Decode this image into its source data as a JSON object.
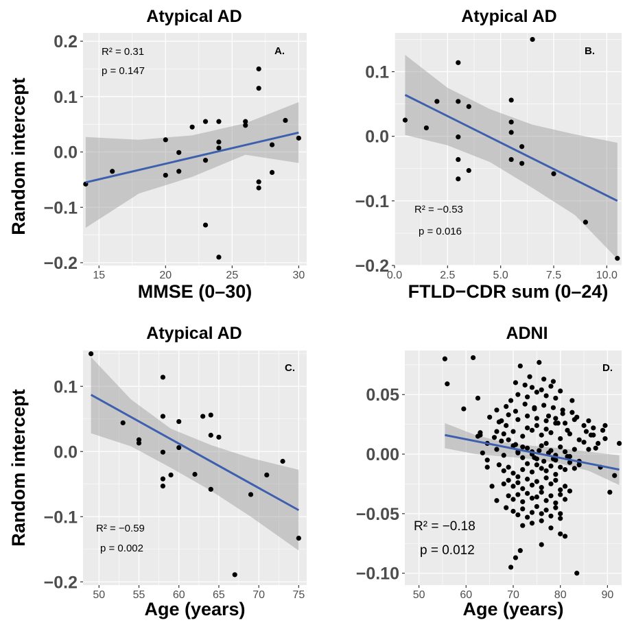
{
  "colors": {
    "panel_bg": "#ebebeb",
    "grid_major": "#ffffff",
    "point": "#000000",
    "fit_line": "#3e5fae",
    "ci_band": "#999999"
  },
  "ylabel_left": "Random intercept",
  "chart_data": [
    {
      "id": "A",
      "type": "scatter",
      "title": "Atypical AD",
      "xlabel": "MMSE (0–30)",
      "ylabel": "Random intercept",
      "tag": "A.",
      "stats": {
        "r2": "R² = 0.31",
        "p": "p = 0.147"
      },
      "xlim": [
        13.8,
        30.6
      ],
      "ylim": [
        -0.205,
        0.215
      ],
      "xticks": [
        15,
        20,
        25,
        30
      ],
      "xtick_labels": [
        "15",
        "20",
        "25",
        "30"
      ],
      "yticks": [
        -0.2,
        -0.1,
        0.0,
        0.1,
        0.2
      ],
      "ytick_labels": [
        "−0.2",
        "−0.1",
        "0.0",
        "0.1",
        "0.2"
      ],
      "x": [
        14,
        16,
        20,
        20,
        21,
        21,
        22,
        23,
        23,
        23,
        24,
        24,
        24,
        24,
        26,
        26,
        27,
        27,
        27,
        27,
        28,
        28,
        29,
        30
      ],
      "y": [
        -0.058,
        -0.035,
        0.022,
        -0.042,
        -0.001,
        -0.035,
        0.045,
        0.055,
        -0.015,
        -0.132,
        0.055,
        0.018,
        0.007,
        -0.19,
        0.055,
        0.048,
        0.15,
        0.115,
        -0.054,
        -0.065,
        0.013,
        -0.037,
        0.057,
        0.025
      ],
      "fit": {
        "x0": 14,
        "y0": -0.055,
        "x1": 30,
        "y1": 0.035
      },
      "band": {
        "x": [
          14,
          18,
          22,
          26,
          30
        ],
        "upper": [
          0.027,
          0.022,
          0.03,
          0.052,
          0.09
        ],
        "lower": [
          -0.137,
          -0.075,
          -0.045,
          -0.005,
          -0.02
        ]
      }
    },
    {
      "id": "B",
      "type": "scatter",
      "title": "Atypical AD",
      "xlabel": "FTLD−CDR sum (0–24)",
      "ylabel": "",
      "tag": "B.",
      "stats": {
        "r2": "R² = −0.53",
        "p": "p = 0.016"
      },
      "xlim": [
        0.0,
        10.7
      ],
      "ylim": [
        -0.2,
        0.16
      ],
      "xticks": [
        0.0,
        2.5,
        5.0,
        7.5,
        10.0
      ],
      "xtick_labels": [
        "0.0",
        "2.5",
        "5.0",
        "7.5",
        "10.0"
      ],
      "yticks": [
        -0.2,
        -0.1,
        0.0,
        0.1
      ],
      "ytick_labels": [
        "−0.2",
        "−0.1",
        "0.0",
        "0.1"
      ],
      "x": [
        0.5,
        1.5,
        2.0,
        3.0,
        3.0,
        3.0,
        3.0,
        3.0,
        3.5,
        3.5,
        5.5,
        5.5,
        5.5,
        5.5,
        6.0,
        6.0,
        6.5,
        7.5,
        9.0,
        10.5
      ],
      "y": [
        0.025,
        0.013,
        0.054,
        0.114,
        0.054,
        -0.001,
        -0.036,
        -0.066,
        0.046,
        -0.053,
        0.056,
        0.022,
        0.006,
        -0.036,
        -0.016,
        -0.042,
        0.15,
        -0.058,
        -0.133,
        -0.189
      ],
      "fit": {
        "x0": 0.5,
        "y0": 0.064,
        "x1": 10.5,
        "y1": -0.1
      },
      "band": {
        "x": [
          0.5,
          2.5,
          4.5,
          6.5,
          8.5,
          10.5
        ],
        "upper": [
          0.126,
          0.075,
          0.042,
          0.018,
          0.003,
          -0.01
        ],
        "lower": [
          0.002,
          -0.014,
          -0.04,
          -0.08,
          -0.122,
          -0.19
        ]
      }
    },
    {
      "id": "C",
      "type": "scatter",
      "title": "Atypical AD",
      "xlabel": "Age (years)",
      "ylabel": "Random intercept",
      "tag": "C.",
      "stats": {
        "r2": "R² = −0.59",
        "p": "p = 0.002"
      },
      "xlim": [
        48.0,
        76.0
      ],
      "ylim": [
        -0.205,
        0.155
      ],
      "xticks": [
        50,
        55,
        60,
        65,
        70,
        75
      ],
      "xtick_labels": [
        "50",
        "55",
        "60",
        "65",
        "70",
        "75"
      ],
      "yticks": [
        -0.2,
        -0.1,
        0.0,
        0.1
      ],
      "ytick_labels": [
        "−0.2",
        "−0.1",
        "0.0",
        "0.1"
      ],
      "x": [
        49,
        53,
        55,
        55,
        58,
        58,
        58,
        58,
        58,
        59,
        60,
        60,
        62,
        63,
        64,
        64,
        64,
        65,
        67,
        69,
        71,
        73,
        75
      ],
      "y": [
        0.15,
        0.044,
        0.018,
        0.013,
        0.114,
        0.054,
        -0.001,
        -0.042,
        -0.053,
        -0.036,
        0.046,
        0.006,
        -0.035,
        0.054,
        0.056,
        0.025,
        -0.058,
        0.022,
        -0.189,
        -0.066,
        -0.036,
        -0.015,
        -0.133
      ],
      "fit": {
        "x0": 49,
        "y0": 0.087,
        "x1": 75,
        "y1": -0.09
      },
      "band": {
        "x": [
          49,
          54,
          59,
          64,
          69,
          75
        ],
        "upper": [
          0.145,
          0.08,
          0.035,
          0.01,
          -0.01,
          -0.028
        ],
        "lower": [
          0.028,
          0.008,
          -0.025,
          -0.06,
          -0.1,
          -0.152
        ]
      }
    },
    {
      "id": "D",
      "type": "scatter",
      "title": "ADNI",
      "xlabel": "Age (years)",
      "ylabel": "",
      "tag": "D.",
      "stats": {
        "r2": "R² = −0.18",
        "p": "p = 0.012"
      },
      "xlim": [
        47.0,
        93.0
      ],
      "ylim": [
        -0.11,
        0.087
      ],
      "xticks": [
        50,
        60,
        70,
        80,
        90
      ],
      "xtick_labels": [
        "50",
        "60",
        "70",
        "80",
        "90"
      ],
      "yticks": [
        -0.1,
        -0.05,
        0.0,
        0.05
      ],
      "ytick_labels": [
        "−0.10",
        "−0.05",
        "0.00",
        "0.05"
      ],
      "x": [
        55.5,
        56,
        59.5,
        61.5,
        62.5,
        62.5,
        63,
        63.5,
        63,
        64.5,
        66.5,
        67.5,
        68.5,
        69.5,
        70.5,
        71.5,
        73.5,
        74.5,
        75.5,
        76.5,
        77.5,
        78.5,
        79.5,
        80.5,
        81.5,
        82.5,
        83.5,
        85.5,
        86.5,
        87.5,
        88.5,
        89.5,
        89.5,
        90.5,
        91.5,
        92.5,
        83.5,
        81,
        80,
        76,
        71.5,
        69.5,
        70.5,
        68.5,
        66.5,
        65.5,
        64.5,
        64.5,
        66.5,
        67.5,
        69,
        70,
        71,
        72,
        73,
        74,
        75,
        76,
        77,
        78,
        79,
        80,
        81,
        82,
        83,
        84,
        85,
        86,
        87,
        88,
        67,
        68,
        69,
        70,
        71,
        72,
        73,
        74,
        75,
        76,
        77,
        78,
        79,
        80,
        81,
        82,
        83,
        84,
        68,
        69,
        70,
        71,
        72,
        73,
        74,
        75,
        76,
        77,
        78,
        79,
        80,
        81,
        82,
        69,
        70,
        71,
        72,
        73,
        74,
        75,
        76,
        77,
        78,
        79,
        80,
        81,
        70,
        71,
        72,
        73,
        74,
        75,
        76,
        77,
        78,
        79,
        80,
        72,
        74,
        76,
        78,
        80,
        73,
        75,
        77,
        79,
        66,
        68,
        70,
        72,
        74,
        76,
        78,
        80,
        82,
        84,
        86,
        65,
        67,
        69,
        71,
        73,
        75,
        77,
        79,
        81,
        83,
        85,
        87,
        89,
        66.5,
        68.5,
        70.5,
        72.5,
        74.5,
        76.5,
        78.5,
        80.5,
        82.5,
        71,
        73,
        75,
        77,
        79,
        72.5,
        74,
        76,
        78,
        80,
        74.5,
        76.5,
        78.5,
        70.5,
        72,
        75.5,
        77.5,
        81.5,
        68,
        71,
        74,
        79
      ],
      "y": [
        0.08,
        0.059,
        0.038,
        0.081,
        0.047,
        0.015,
        0.016,
        0.001,
        0.018,
        0.009,
        0.019,
        0.028,
        0.024,
        0.045,
        0.06,
        0.074,
        0.065,
        0.039,
        0.077,
        0.063,
        0.032,
        0.061,
        0.026,
        0.034,
        0.02,
        0.045,
        0.031,
        0.019,
        0.016,
        0.005,
        -0.011,
        0.024,
        0.013,
        -0.032,
        -0.018,
        0.009,
        -0.1,
        -0.069,
        -0.067,
        -0.076,
        -0.081,
        -0.095,
        -0.087,
        -0.045,
        -0.039,
        -0.027,
        -0.011,
        -0.005,
        0.004,
        0.011,
        0.012,
        0.007,
        0.001,
        -0.003,
        0.005,
        0.002,
        -0.004,
        0.007,
        0.009,
        0.003,
        -0.001,
        0.006,
        0.002,
        -0.002,
        0.004,
        -0.006,
        0.01,
        0.004,
        0.016,
        0.009,
        -0.009,
        -0.014,
        -0.011,
        -0.016,
        -0.019,
        -0.013,
        -0.008,
        -0.015,
        -0.009,
        -0.012,
        -0.014,
        -0.01,
        -0.017,
        -0.011,
        -0.013,
        -0.007,
        -0.012,
        -0.009,
        -0.025,
        -0.022,
        -0.027,
        -0.024,
        -0.029,
        -0.021,
        -0.026,
        -0.023,
        -0.028,
        -0.02,
        -0.025,
        -0.022,
        -0.03,
        -0.027,
        -0.031,
        -0.035,
        -0.038,
        -0.034,
        -0.04,
        -0.033,
        -0.037,
        -0.036,
        -0.032,
        -0.039,
        -0.035,
        -0.041,
        -0.034,
        -0.038,
        -0.048,
        -0.051,
        -0.046,
        -0.053,
        -0.049,
        -0.044,
        -0.05,
        -0.047,
        -0.052,
        -0.045,
        -0.05,
        -0.06,
        -0.058,
        -0.056,
        -0.062,
        -0.054,
        0.022,
        0.024,
        0.021,
        0.026,
        0.014,
        0.017,
        0.019,
        0.015,
        0.02,
        0.016,
        0.018,
        0.013,
        0.017,
        0.012,
        0.028,
        0.031,
        0.027,
        0.033,
        0.029,
        0.032,
        0.03,
        0.028,
        0.03,
        0.026,
        0.029,
        0.024,
        0.022,
        0.02,
        0.037,
        0.04,
        0.036,
        0.042,
        0.038,
        0.041,
        0.039,
        0.037,
        0.035,
        0.05,
        0.048,
        0.052,
        0.049,
        0.047,
        0.058,
        0.056,
        0.054,
        0.057,
        0.053,
        -0.003,
        -0.006,
        -0.004,
        0.008,
        0.006,
        0.003,
        0.001,
        -0.002,
        -0.001,
        0.002,
        0.0,
        -0.005
      ],
      "fit": {
        "x0": 55.5,
        "y0": 0.016,
        "x1": 92.5,
        "y1": -0.013
      },
      "band": {
        "x": [
          55.5,
          62,
          68,
          74,
          80,
          86,
          92.5
        ],
        "upper": [
          0.026,
          0.016,
          0.01,
          0.007,
          0.005,
          0.002,
          -0.001
        ],
        "lower": [
          0.005,
          0.0,
          -0.002,
          -0.004,
          -0.008,
          -0.014,
          -0.026
        ]
      }
    }
  ]
}
